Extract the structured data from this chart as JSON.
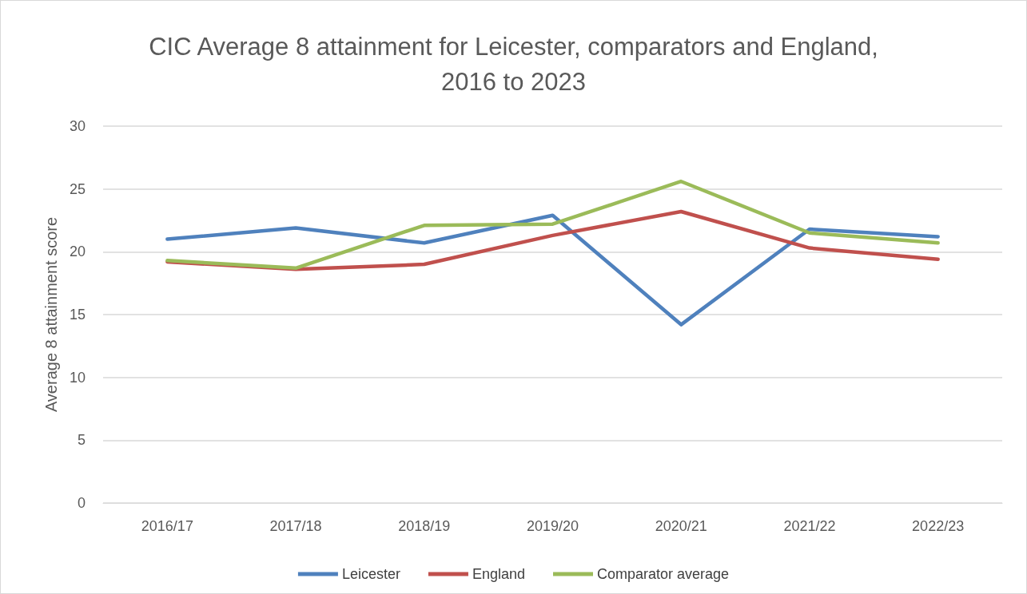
{
  "chart_data": {
    "type": "line",
    "title": "CIC Average 8 attainment for Leicester, comparators and England,\n2016 to 2023",
    "ylabel": "Average 8 attainment score",
    "categories": [
      "2016/17",
      "2017/18",
      "2018/19",
      "2019/20",
      "2020/21",
      "2021/22",
      "2022/23"
    ],
    "series": [
      {
        "name": "Leicester",
        "color": "#4f81bd",
        "values": [
          21.0,
          21.9,
          20.7,
          22.9,
          14.2,
          21.8,
          21.2
        ]
      },
      {
        "name": "England",
        "color": "#c0504d",
        "values": [
          19.2,
          18.6,
          19.0,
          21.3,
          23.2,
          20.3,
          19.4
        ]
      },
      {
        "name": "Comparator average",
        "color": "#9bbb59",
        "values": [
          19.3,
          18.7,
          22.1,
          22.2,
          25.6,
          21.5,
          20.7
        ]
      }
    ],
    "ylim": [
      0,
      30
    ],
    "yticks": [
      0,
      5,
      10,
      15,
      20,
      25,
      30
    ],
    "grid": "y",
    "legend": "bottom",
    "marker": "none",
    "line_style": "solid"
  }
}
